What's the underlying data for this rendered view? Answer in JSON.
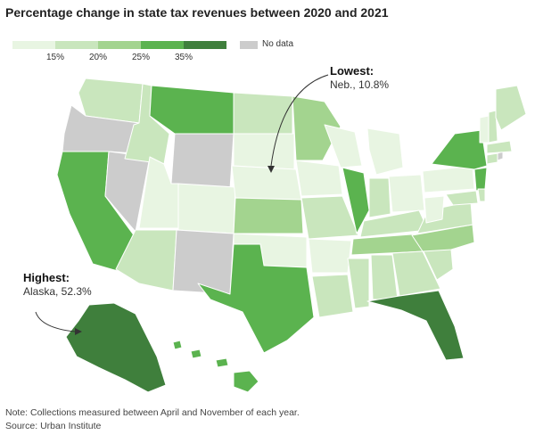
{
  "title": "Percentage change in state tax revenues between 2020 and 2021",
  "legend": {
    "ticks": [
      "15%",
      "20%",
      "25%",
      "35%"
    ],
    "nodata_label": "No data",
    "colors": [
      "#e8f5e2",
      "#c9e6bd",
      "#a3d48f",
      "#5bb34f",
      "#3f7f3c"
    ],
    "nodata_color": "#cccccc"
  },
  "callouts": {
    "lowest": {
      "title": "Lowest:",
      "text": "Neb., 10.8%"
    },
    "highest": {
      "title": "Highest:",
      "text": "Alaska, 52.3%"
    }
  },
  "note": "Note: Collections measured between April and November of each year.",
  "source": "Source: Urban Institute"
}
